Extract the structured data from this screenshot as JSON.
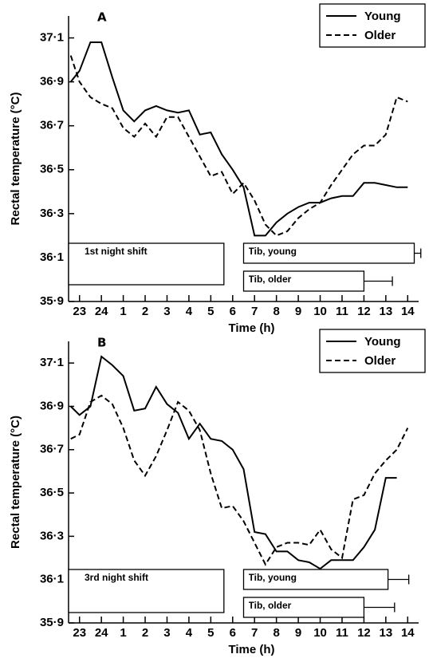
{
  "chart_data": [
    {
      "type": "line",
      "panel": "A",
      "ylabel": "Rectal temperature (°C)",
      "xlabel": "Time (h)",
      "xlim": [
        22.5,
        38.5
      ],
      "ylim": [
        35.9,
        37.2
      ],
      "xticks": [
        {
          "value": 23,
          "label": "23"
        },
        {
          "value": 24,
          "label": "24"
        },
        {
          "value": 25,
          "label": "1"
        },
        {
          "value": 26,
          "label": "2"
        },
        {
          "value": 27,
          "label": "3"
        },
        {
          "value": 28,
          "label": "4"
        },
        {
          "value": 29,
          "label": "5"
        },
        {
          "value": 30,
          "label": "6"
        },
        {
          "value": 31,
          "label": "7"
        },
        {
          "value": 32,
          "label": "8"
        },
        {
          "value": 33,
          "label": "9"
        },
        {
          "value": 34,
          "label": "10"
        },
        {
          "value": 35,
          "label": "11"
        },
        {
          "value": 36,
          "label": "12"
        },
        {
          "value": 37,
          "label": "13"
        },
        {
          "value": 38,
          "label": "14"
        }
      ],
      "yticks": [
        {
          "value": 35.9,
          "label": "35·9"
        },
        {
          "value": 36.1,
          "label": "36·1"
        },
        {
          "value": 36.3,
          "label": "36·3"
        },
        {
          "value": 36.5,
          "label": "36·5"
        },
        {
          "value": 36.7,
          "label": "36·7"
        },
        {
          "value": 36.9,
          "label": "36·9"
        },
        {
          "value": 37.1,
          "label": "37·1"
        }
      ],
      "legend": "upper right",
      "x": [
        22.6,
        23,
        23.5,
        24,
        24.5,
        25,
        25.5,
        26,
        26.5,
        27,
        27.5,
        28,
        28.5,
        29,
        29.5,
        30,
        30.5,
        31,
        31.5,
        32,
        32.5,
        33,
        33.5,
        34,
        34.5,
        35,
        35.5,
        36,
        36.5,
        37,
        37.5,
        38
      ],
      "series": [
        {
          "name": "Young",
          "color": "#000000",
          "linestyle": "solid",
          "values": [
            36.9,
            36.95,
            37.08,
            37.08,
            36.92,
            36.77,
            36.72,
            36.77,
            36.79,
            36.77,
            36.76,
            36.77,
            36.66,
            36.67,
            36.57,
            36.5,
            36.42,
            36.2,
            36.2,
            36.26,
            36.3,
            36.33,
            36.35,
            36.35,
            36.37,
            36.38,
            36.38,
            36.44,
            36.44,
            36.43,
            36.42,
            36.42
          ]
        },
        {
          "name": "Older",
          "color": "#000000",
          "linestyle": "dashed",
          "values": [
            37.02,
            36.9,
            36.83,
            36.8,
            36.78,
            36.69,
            36.65,
            36.71,
            36.65,
            36.74,
            36.74,
            36.65,
            36.56,
            36.47,
            36.49,
            36.39,
            36.44,
            36.36,
            36.25,
            36.2,
            36.22,
            36.28,
            36.32,
            36.35,
            36.43,
            36.5,
            36.57,
            36.61,
            36.61,
            36.66,
            36.83,
            36.81
          ]
        }
      ],
      "intervals": [
        {
          "label": "1st night shift",
          "start": 22.5,
          "end": 29.6
        },
        {
          "label": "Tib, young",
          "start": 30.5,
          "end": 38.3,
          "error": 0.3
        },
        {
          "label": "Tib, older",
          "start": 30.5,
          "end": 36.0,
          "error": 1.3
        }
      ]
    },
    {
      "type": "line",
      "panel": "B",
      "ylabel": "Rectal temperature (°C)",
      "xlabel": "Time (h)",
      "xlim": [
        22.5,
        38.5
      ],
      "ylim": [
        35.9,
        37.2
      ],
      "xticks": [
        {
          "value": 23,
          "label": "23"
        },
        {
          "value": 24,
          "label": "24"
        },
        {
          "value": 25,
          "label": "1"
        },
        {
          "value": 26,
          "label": "2"
        },
        {
          "value": 27,
          "label": "3"
        },
        {
          "value": 28,
          "label": "4"
        },
        {
          "value": 29,
          "label": "5"
        },
        {
          "value": 30,
          "label": "6"
        },
        {
          "value": 31,
          "label": "7"
        },
        {
          "value": 32,
          "label": "8"
        },
        {
          "value": 33,
          "label": "9"
        },
        {
          "value": 34,
          "label": "10"
        },
        {
          "value": 35,
          "label": "11"
        },
        {
          "value": 36,
          "label": "12"
        },
        {
          "value": 37,
          "label": "13"
        },
        {
          "value": 38,
          "label": "14"
        }
      ],
      "yticks": [
        {
          "value": 35.9,
          "label": "35·9"
        },
        {
          "value": 36.1,
          "label": "36·1"
        },
        {
          "value": 36.3,
          "label": "36·3"
        },
        {
          "value": 36.5,
          "label": "36·5"
        },
        {
          "value": 36.7,
          "label": "36·7"
        },
        {
          "value": 36.9,
          "label": "36·9"
        },
        {
          "value": 37.1,
          "label": "37·1"
        }
      ],
      "legend": "upper right",
      "x": [
        22.6,
        23,
        23.5,
        24,
        24.5,
        25,
        25.5,
        26,
        26.5,
        27,
        27.5,
        28,
        28.5,
        29,
        29.5,
        30,
        30.5,
        31,
        31.5,
        32,
        32.5,
        33,
        33.5,
        34,
        34.5,
        35,
        35.5,
        36,
        36.5,
        37,
        37.5,
        38
      ],
      "series": [
        {
          "name": "Young",
          "color": "#000000",
          "linestyle": "solid",
          "values": [
            36.9,
            36.86,
            36.9,
            37.13,
            37.09,
            37.04,
            36.88,
            36.89,
            36.99,
            36.91,
            36.87,
            36.75,
            36.82,
            36.75,
            36.74,
            36.7,
            36.61,
            36.32,
            36.31,
            36.23,
            36.23,
            36.19,
            36.18,
            36.15,
            36.19,
            36.19,
            36.19,
            36.25,
            36.33,
            36.57,
            36.57,
            null
          ]
        },
        {
          "name": "Older",
          "color": "#000000",
          "linestyle": "dashed",
          "values": [
            36.75,
            36.77,
            36.92,
            36.95,
            36.91,
            36.8,
            36.65,
            36.58,
            36.67,
            36.79,
            36.92,
            36.88,
            36.79,
            36.59,
            36.43,
            36.44,
            36.37,
            36.27,
            36.17,
            36.25,
            36.27,
            36.27,
            36.26,
            36.33,
            36.24,
            36.2,
            36.47,
            36.49,
            36.59,
            36.65,
            36.7,
            36.8
          ]
        }
      ],
      "intervals": [
        {
          "label": "3rd night shift",
          "start": 22.5,
          "end": 29.6
        },
        {
          "label": "Tib, young",
          "start": 30.5,
          "end": 37.1,
          "error": 0.95
        },
        {
          "label": "Tib, older",
          "start": 30.5,
          "end": 36.0,
          "error": 1.4
        }
      ]
    }
  ]
}
